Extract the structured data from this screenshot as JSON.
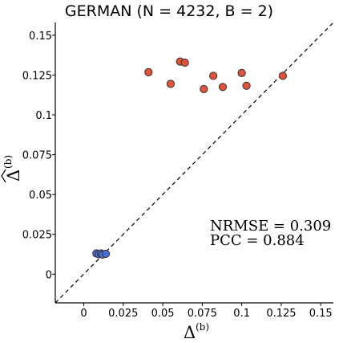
{
  "chart_data": {
    "type": "scatter",
    "title": "GERMAN (N = 4232, B = 2)",
    "xlabel_main": "Δ",
    "xlabel_sup": "(b)",
    "ylabel_main": "Δ",
    "ylabel_sup": "(b)",
    "ylabel_hat": "true",
    "xlim": [
      -0.018,
      0.158
    ],
    "ylim": [
      -0.018,
      0.158
    ],
    "x_ticks": [
      0,
      0.025,
      0.05,
      0.075,
      0.1,
      0.125,
      0.15
    ],
    "x_tick_labels": [
      "0",
      "0.025",
      "0.05",
      "0.075",
      "0.1",
      "0.125",
      "0.15"
    ],
    "y_ticks": [
      0,
      0.025,
      0.05,
      0.075,
      0.1,
      0.125,
      0.15
    ],
    "y_tick_labels": [
      "0",
      "0.025",
      "0.05",
      "0.075",
      "0.1",
      "0.125",
      "0.15"
    ],
    "reference_line": "y = x",
    "series": [
      {
        "color": "#e0533a",
        "points": [
          [
            0.041,
            0.1268
          ],
          [
            0.055,
            0.1195
          ],
          [
            0.061,
            0.1335
          ],
          [
            0.064,
            0.1328
          ],
          [
            0.076,
            0.1162
          ],
          [
            0.082,
            0.1245
          ],
          [
            0.088,
            0.1175
          ],
          [
            0.1,
            0.1263
          ],
          [
            0.103,
            0.1183
          ],
          [
            0.126,
            0.1245
          ]
        ]
      },
      {
        "color": "#4a6fd6",
        "points": [
          [
            0.008,
            0.013
          ],
          [
            0.0095,
            0.0125
          ],
          [
            0.011,
            0.013
          ],
          [
            0.012,
            0.0123
          ],
          [
            0.014,
            0.0128
          ]
        ]
      }
    ],
    "annotations": [
      "NRMSE = 0.309",
      "PCC = 0.884"
    ],
    "grid": false
  }
}
